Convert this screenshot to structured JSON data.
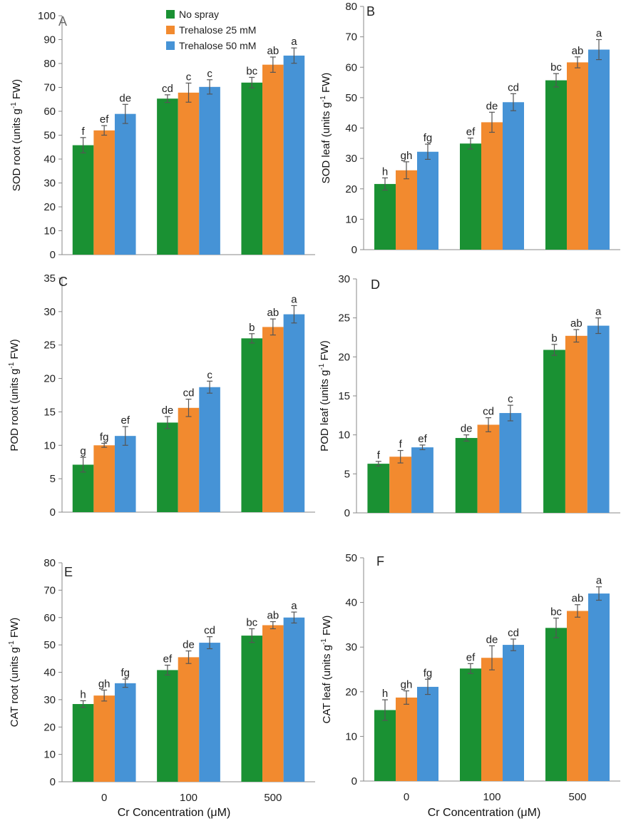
{
  "legend": {
    "entries": [
      {
        "label": "No spray",
        "color": "#1a9133"
      },
      {
        "label": "Trehalose 25 mM",
        "color": "#f28a2f"
      },
      {
        "label": "Trehalose 50 mM",
        "color": "#4693d6"
      }
    ]
  },
  "x_axis_title": "Cr Concentration (μM)",
  "chart_data": [
    {
      "type": "bar",
      "panel": "A",
      "ylabel_main": "SOD root (units g",
      "ylabel_sup": "-1",
      "ylabel_tail": " FW)",
      "categories": [
        "0",
        "100",
        "500"
      ],
      "show_xticks": false,
      "ylim": [
        0,
        100
      ],
      "ystep": 10,
      "yticks": [
        "0",
        "10",
        "20",
        "30",
        "40",
        "50",
        "60",
        "70",
        "80",
        "90",
        "100"
      ],
      "series": [
        {
          "name": "No spray",
          "values": [
            45.8,
            65.3,
            72.0
          ],
          "errors": [
            3.2,
            1.6,
            2.2
          ],
          "letters": [
            "f",
            "cd",
            "bc"
          ]
        },
        {
          "name": "Trehalose 25 mM",
          "values": [
            52.0,
            67.8,
            79.5
          ],
          "errors": [
            2.0,
            4.0,
            3.2
          ],
          "letters": [
            "ef",
            "c",
            "ab"
          ]
        },
        {
          "name": "Trehalose 50 mM",
          "values": [
            58.9,
            70.2,
            83.3
          ],
          "errors": [
            4.0,
            3.0,
            3.2
          ],
          "letters": [
            "de",
            "c",
            "a"
          ]
        }
      ]
    },
    {
      "type": "bar",
      "panel": "B",
      "ylabel_main": "SOD leaf (units g",
      "ylabel_sup": "-1",
      "ylabel_tail": " FW)",
      "categories": [
        "0",
        "100",
        "500"
      ],
      "show_xticks": false,
      "ylim": [
        0,
        80
      ],
      "ystep": 10,
      "yticks": [
        "0",
        "10",
        "20",
        "30",
        "40",
        "50",
        "60",
        "70",
        "80"
      ],
      "series": [
        {
          "name": "No spray",
          "values": [
            21.6,
            34.9,
            55.7
          ],
          "errors": [
            2.0,
            1.8,
            2.2
          ],
          "letters": [
            "h",
            "ef",
            "bc"
          ]
        },
        {
          "name": "Trehalose 25 mM",
          "values": [
            26.1,
            41.9,
            61.6
          ],
          "errors": [
            2.8,
            3.3,
            1.8
          ],
          "letters": [
            "gh",
            "de",
            "ab"
          ]
        },
        {
          "name": "Trehalose 50 mM",
          "values": [
            32.2,
            48.5,
            65.8
          ],
          "errors": [
            2.5,
            2.8,
            3.3
          ],
          "letters": [
            "fg",
            "cd",
            "a"
          ]
        }
      ]
    },
    {
      "type": "bar",
      "panel": "C",
      "ylabel_main": "POD root (units g",
      "ylabel_sup": "-1",
      "ylabel_tail": " FW)",
      "categories": [
        "0",
        "100",
        "500"
      ],
      "show_xticks": false,
      "ylim": [
        0,
        35
      ],
      "ystep": 5,
      "yticks": [
        "0",
        "5",
        "10",
        "15",
        "20",
        "25",
        "30",
        "35"
      ],
      "series": [
        {
          "name": "No spray",
          "values": [
            7.1,
            13.4,
            26.0
          ],
          "errors": [
            1.1,
            0.9,
            0.7
          ],
          "letters": [
            "g",
            "de",
            "b"
          ]
        },
        {
          "name": "Trehalose 25 mM",
          "values": [
            10.0,
            15.6,
            27.7
          ],
          "errors": [
            0.3,
            1.3,
            1.2
          ],
          "letters": [
            "fg",
            "cd",
            "ab"
          ]
        },
        {
          "name": "Trehalose 50 mM",
          "values": [
            11.4,
            18.7,
            29.6
          ],
          "errors": [
            1.4,
            0.9,
            1.3
          ],
          "letters": [
            "ef",
            "c",
            "a"
          ]
        }
      ]
    },
    {
      "type": "bar",
      "panel": "D",
      "ylabel_main": "POD leaf (units g",
      "ylabel_sup": "-1",
      "ylabel_tail": " FW)",
      "categories": [
        "0",
        "100",
        "500"
      ],
      "show_xticks": false,
      "ylim": [
        0,
        30
      ],
      "ystep": 5,
      "yticks": [
        "0",
        "5",
        "10",
        "15",
        "20",
        "25",
        "30"
      ],
      "series": [
        {
          "name": "No spray",
          "values": [
            6.3,
            9.6,
            20.9
          ],
          "errors": [
            0.3,
            0.4,
            0.7
          ],
          "letters": [
            "f",
            "de",
            "b"
          ]
        },
        {
          "name": "Trehalose 25 mM",
          "values": [
            7.2,
            11.3,
            22.7
          ],
          "errors": [
            0.8,
            0.9,
            0.8
          ],
          "letters": [
            "f",
            "cd",
            "ab"
          ]
        },
        {
          "name": "Trehalose 50 mM",
          "values": [
            8.4,
            12.8,
            24.0
          ],
          "errors": [
            0.3,
            1.0,
            1.0
          ],
          "letters": [
            "ef",
            "c",
            "a"
          ]
        }
      ]
    },
    {
      "type": "bar",
      "panel": "E",
      "ylabel_main": "CAT root (units g",
      "ylabel_sup": "-1",
      "ylabel_tail": " FW)",
      "categories": [
        "0",
        "100",
        "500"
      ],
      "show_xticks": true,
      "ylim": [
        0,
        80
      ],
      "ystep": 10,
      "yticks": [
        "0",
        "10",
        "20",
        "30",
        "40",
        "50",
        "60",
        "70",
        "80"
      ],
      "series": [
        {
          "name": "No spray",
          "values": [
            28.4,
            40.8,
            53.4
          ],
          "errors": [
            1.2,
            1.8,
            2.5
          ],
          "letters": [
            "h",
            "ef",
            "bc"
          ]
        },
        {
          "name": "Trehalose 25 mM",
          "values": [
            31.5,
            45.5,
            57.2
          ],
          "errors": [
            2.0,
            2.3,
            1.3
          ],
          "letters": [
            "gh",
            "de",
            "ab"
          ]
        },
        {
          "name": "Trehalose 50 mM",
          "values": [
            36.0,
            50.8,
            60.0
          ],
          "errors": [
            1.5,
            2.2,
            2.0
          ],
          "letters": [
            "fg",
            "cd",
            "a"
          ]
        }
      ]
    },
    {
      "type": "bar",
      "panel": "F",
      "ylabel_main": "CAT leaf (units g",
      "ylabel_sup": "-1",
      "ylabel_tail": " FW)",
      "categories": [
        "0",
        "100",
        "500"
      ],
      "show_xticks": true,
      "ylim": [
        0,
        50
      ],
      "ystep": 10,
      "yticks": [
        "0",
        "10",
        "20",
        "30",
        "40",
        "50"
      ],
      "series": [
        {
          "name": "No spray",
          "values": [
            15.9,
            25.2,
            34.3
          ],
          "errors": [
            2.3,
            1.1,
            2.2
          ],
          "letters": [
            "h",
            "ef",
            "bc"
          ]
        },
        {
          "name": "Trehalose 25 mM",
          "values": [
            18.7,
            27.6,
            38.1
          ],
          "errors": [
            1.5,
            2.7,
            1.4
          ],
          "letters": [
            "gh",
            "de",
            "ab"
          ]
        },
        {
          "name": "Trehalose 50 mM",
          "values": [
            21.1,
            30.5,
            42.0
          ],
          "errors": [
            1.7,
            1.3,
            1.5
          ],
          "letters": [
            "fg",
            "cd",
            "a"
          ]
        }
      ]
    }
  ]
}
